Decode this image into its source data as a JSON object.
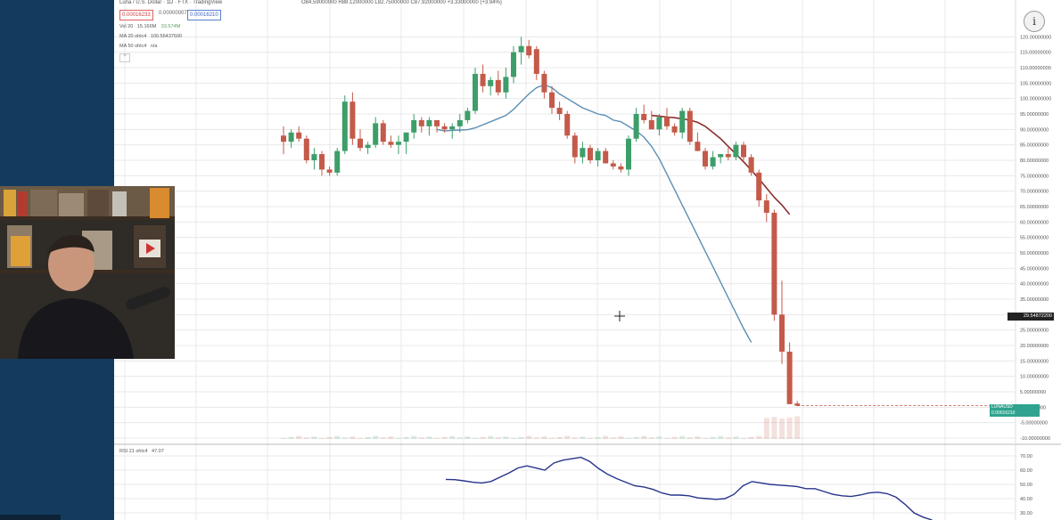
{
  "header": {
    "symbol": "Luna / U.S. Dollar · 1D · FTX · TradingView",
    "ohlc": "O84.59000000 H88.12000000 L82.75000000 C87.92000000 +3.33000000 (+3.94%)",
    "sell_price": "0.00016233",
    "spread": "0.00000007",
    "buy_price": "0.00016210"
  },
  "indicators": {
    "vol": {
      "label": "Vol 20",
      "value": "15.166M",
      "value2": "33.574M"
    },
    "ma20": {
      "label": "MA 20 ohlc4",
      "value": "100.56437500"
    },
    "ma50": {
      "label": "MA 50 ohlc4",
      "value": "n/a"
    },
    "rsi": {
      "label": "RSI 21 ohlc4",
      "value": "47.07"
    }
  },
  "price_axis": {
    "labels": [
      "120.00000000",
      "115.00000000",
      "110.00000000",
      "105.00000000",
      "100.00000000",
      "95.00000000",
      "90.00000000",
      "85.00000000",
      "80.00000000",
      "75.00000000",
      "70.00000000",
      "65.00000000",
      "60.00000000",
      "55.00000000",
      "50.00000000",
      "45.00000000",
      "40.00000000",
      "35.00000000",
      "30.00000000",
      "25.00000000",
      "20.00000000",
      "15.00000000",
      "10.00000000",
      "5.00000000",
      "0.00000000",
      "-5.00000000",
      "-10.00000000"
    ],
    "current_price_tag": "29.54872200",
    "last_tag_title": "LUNAUSD",
    "last_tag_value": "0.00016210",
    "last_tag_time": "10:51:35"
  },
  "rsi_axis": {
    "labels": [
      "70.00",
      "60.00",
      "50.00",
      "40.00",
      "30.00"
    ]
  },
  "colors": {
    "up": "#3d9e6a",
    "down": "#c45a4a",
    "ma20": "#5b8fb5",
    "ma50": "#8b2e2e",
    "rsi": "#27348b",
    "grid": "#e8e8e8"
  },
  "icons": {
    "info": "info-icon",
    "crosshair": "crosshair-cursor",
    "webcam": "webcam-presenter"
  },
  "info_glyph": "i",
  "collapse_glyph": "^",
  "chart_data": {
    "type": "candlestick",
    "ylim": [
      -10,
      125
    ],
    "candles": [
      {
        "o": 88,
        "h": 91,
        "l": 82,
        "c": 86
      },
      {
        "o": 86,
        "h": 90,
        "l": 84,
        "c": 89
      },
      {
        "o": 89,
        "h": 91,
        "l": 86,
        "c": 87
      },
      {
        "o": 87,
        "h": 88,
        "l": 79,
        "c": 80
      },
      {
        "o": 80,
        "h": 84,
        "l": 77,
        "c": 82
      },
      {
        "o": 82,
        "h": 83,
        "l": 75,
        "c": 77
      },
      {
        "o": 77,
        "h": 78,
        "l": 75,
        "c": 76
      },
      {
        "o": 76,
        "h": 84,
        "l": 75,
        "c": 83
      },
      {
        "o": 83,
        "h": 101,
        "l": 82,
        "c": 99
      },
      {
        "o": 99,
        "h": 102,
        "l": 85,
        "c": 87
      },
      {
        "o": 87,
        "h": 90,
        "l": 83,
        "c": 84
      },
      {
        "o": 84,
        "h": 86,
        "l": 82,
        "c": 85
      },
      {
        "o": 85,
        "h": 94,
        "l": 84,
        "c": 92
      },
      {
        "o": 92,
        "h": 93,
        "l": 85,
        "c": 86
      },
      {
        "o": 86,
        "h": 88,
        "l": 84,
        "c": 85
      },
      {
        "o": 85,
        "h": 88,
        "l": 82,
        "c": 86
      },
      {
        "o": 86,
        "h": 89,
        "l": 82,
        "c": 89
      },
      {
        "o": 89,
        "h": 95,
        "l": 87,
        "c": 93
      },
      {
        "o": 93,
        "h": 94,
        "l": 89,
        "c": 91
      },
      {
        "o": 91,
        "h": 94,
        "l": 88,
        "c": 93
      },
      {
        "o": 93,
        "h": 93,
        "l": 89,
        "c": 91
      },
      {
        "o": 91,
        "h": 92,
        "l": 89,
        "c": 90
      },
      {
        "o": 90,
        "h": 92,
        "l": 87,
        "c": 91
      },
      {
        "o": 91,
        "h": 95,
        "l": 89,
        "c": 93
      },
      {
        "o": 93,
        "h": 97,
        "l": 92,
        "c": 96
      },
      {
        "o": 96,
        "h": 110,
        "l": 95,
        "c": 108
      },
      {
        "o": 108,
        "h": 111,
        "l": 102,
        "c": 104
      },
      {
        "o": 104,
        "h": 107,
        "l": 101,
        "c": 106
      },
      {
        "o": 106,
        "h": 109,
        "l": 101,
        "c": 102
      },
      {
        "o": 102,
        "h": 110,
        "l": 100,
        "c": 107
      },
      {
        "o": 107,
        "h": 117,
        "l": 105,
        "c": 115
      },
      {
        "o": 115,
        "h": 120,
        "l": 111,
        "c": 117
      },
      {
        "o": 117,
        "h": 119,
        "l": 113,
        "c": 114
      },
      {
        "o": 116,
        "h": 117,
        "l": 106,
        "c": 108
      },
      {
        "o": 108,
        "h": 109,
        "l": 100,
        "c": 102
      },
      {
        "o": 102,
        "h": 104,
        "l": 95,
        "c": 97
      },
      {
        "o": 97,
        "h": 99,
        "l": 93,
        "c": 95
      },
      {
        "o": 95,
        "h": 96,
        "l": 87,
        "c": 88
      },
      {
        "o": 88,
        "h": 89,
        "l": 79,
        "c": 81
      },
      {
        "o": 81,
        "h": 86,
        "l": 79,
        "c": 84
      },
      {
        "o": 84,
        "h": 85,
        "l": 79,
        "c": 80
      },
      {
        "o": 80,
        "h": 84,
        "l": 78,
        "c": 83
      },
      {
        "o": 83,
        "h": 84,
        "l": 79,
        "c": 79
      },
      {
        "o": 79,
        "h": 80,
        "l": 77,
        "c": 78
      },
      {
        "o": 78,
        "h": 79,
        "l": 76,
        "c": 77
      },
      {
        "o": 77,
        "h": 88,
        "l": 75,
        "c": 87
      },
      {
        "o": 87,
        "h": 97,
        "l": 86,
        "c": 95
      },
      {
        "o": 95,
        "h": 98,
        "l": 92,
        "c": 93
      },
      {
        "o": 93,
        "h": 96,
        "l": 90,
        "c": 90
      },
      {
        "o": 90,
        "h": 95,
        "l": 88,
        "c": 94
      },
      {
        "o": 94,
        "h": 97,
        "l": 90,
        "c": 91
      },
      {
        "o": 91,
        "h": 92,
        "l": 88,
        "c": 89
      },
      {
        "o": 89,
        "h": 97,
        "l": 87,
        "c": 96
      },
      {
        "o": 96,
        "h": 97,
        "l": 85,
        "c": 86
      },
      {
        "o": 86,
        "h": 89,
        "l": 83,
        "c": 83
      },
      {
        "o": 83,
        "h": 84,
        "l": 77,
        "c": 78
      },
      {
        "o": 78,
        "h": 83,
        "l": 77,
        "c": 81
      },
      {
        "o": 81,
        "h": 82,
        "l": 79,
        "c": 82
      },
      {
        "o": 82,
        "h": 84,
        "l": 80,
        "c": 81
      },
      {
        "o": 81,
        "h": 86,
        "l": 80,
        "c": 85
      },
      {
        "o": 85,
        "h": 86,
        "l": 80,
        "c": 81
      },
      {
        "o": 81,
        "h": 82,
        "l": 75,
        "c": 76
      },
      {
        "o": 76,
        "h": 77,
        "l": 65,
        "c": 67
      },
      {
        "o": 67,
        "h": 69,
        "l": 60,
        "c": 63
      },
      {
        "o": 63,
        "h": 64,
        "l": 28,
        "c": 30
      },
      {
        "o": 30,
        "h": 41,
        "l": 14,
        "c": 18
      },
      {
        "o": 18,
        "h": 21,
        "l": 1,
        "c": 1
      },
      {
        "o": 1.2,
        "h": 2,
        "l": 0.3,
        "c": 0.5
      }
    ],
    "ma20": [
      90,
      89.5,
      89.7,
      89.8,
      89.9,
      90.5,
      91.5,
      92.5,
      93.5,
      94.5,
      96.5,
      99,
      101.5,
      103.5,
      104.5,
      103.5,
      101.5,
      100,
      98.5,
      97,
      96,
      95,
      94.5,
      93,
      92.5,
      91,
      89.5,
      87.5,
      84.5,
      80.5,
      75.5,
      70.5,
      65.5,
      60.5,
      55.5,
      50.5,
      45.5,
      40.5,
      35.5,
      30.5,
      25.5,
      21
    ],
    "ma20_start": 20,
    "ma50": [
      94.5,
      94.3,
      94,
      93.8,
      93.4,
      93,
      92.3,
      91,
      89,
      87,
      84.5,
      82,
      79.5,
      76.8,
      74,
      71,
      68,
      65.5,
      62.5
    ],
    "ma50_start": 48,
    "rsi": {
      "ylim": [
        25,
        75
      ],
      "start": 26,
      "values": [
        53.5,
        53.3,
        52.5,
        51.5,
        51,
        52,
        55,
        58,
        61.5,
        63,
        61.5,
        60,
        65,
        67,
        68,
        69,
        66,
        61,
        57,
        54,
        51.5,
        49,
        48.2,
        46.5,
        44,
        42.5,
        42.5,
        42,
        40.5,
        40,
        39.5,
        40,
        43,
        49,
        52,
        51,
        50,
        49.5,
        49,
        48.5,
        47,
        47,
        45,
        43,
        42,
        41.5,
        42.5,
        44,
        44.5,
        43.5,
        41,
        36,
        30,
        27,
        25
      ]
    }
  }
}
